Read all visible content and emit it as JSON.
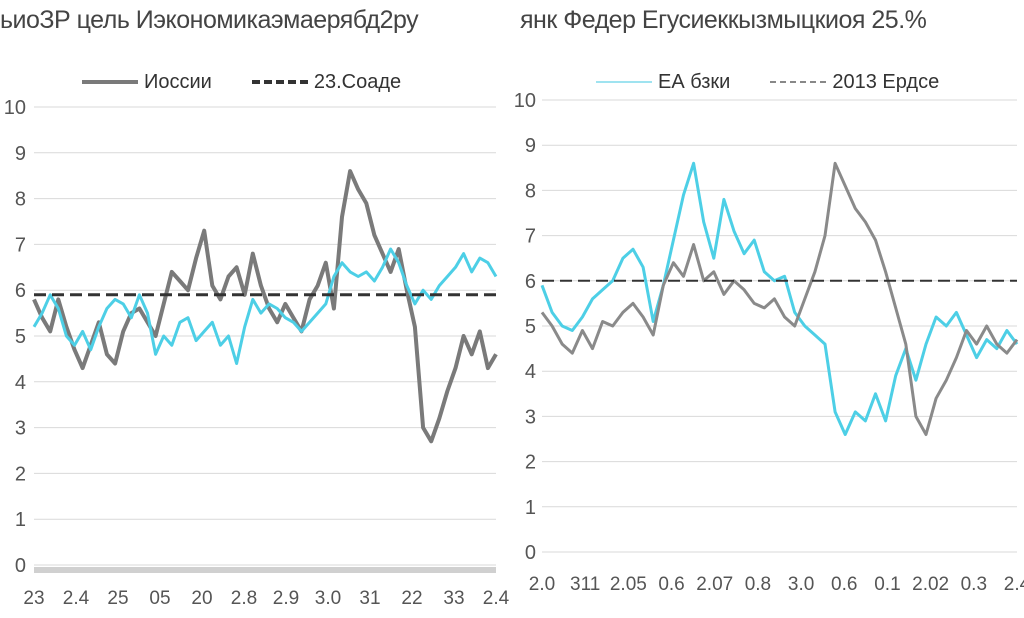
{
  "chart_data": [
    {
      "type": "line",
      "title": "ьиоЗР цель Иэкономикаэмаерябд2ру",
      "series": [
        {
          "name": "Иоссии",
          "color": "#7a7a7a",
          "style": "solid",
          "values": [
            5.8,
            5.4,
            5.1,
            5.8,
            5.2,
            4.7,
            4.3,
            4.8,
            5.3,
            4.6,
            4.4,
            5.1,
            5.5,
            5.6,
            5.3,
            5.0,
            5.7,
            6.4,
            6.2,
            6.0,
            6.7,
            7.3,
            6.1,
            5.8,
            6.3,
            6.5,
            5.9,
            6.8,
            6.1,
            5.6,
            5.3,
            5.7,
            5.4,
            5.1,
            5.8,
            6.1,
            6.6,
            5.6,
            7.6,
            8.6,
            8.2,
            7.9,
            7.2,
            6.8,
            6.4,
            6.9,
            6.0,
            5.2,
            3.0,
            2.7,
            3.2,
            3.8,
            4.3,
            5.0,
            4.6,
            5.1,
            4.3,
            4.6
          ]
        },
        {
          "name": "",
          "color": "#4dcfe6",
          "style": "solid",
          "values": [
            5.2,
            5.5,
            5.9,
            5.6,
            5.0,
            4.8,
            5.1,
            4.7,
            5.2,
            5.6,
            5.8,
            5.7,
            5.4,
            5.9,
            5.5,
            4.6,
            5.0,
            4.8,
            5.3,
            5.4,
            4.9,
            5.1,
            5.3,
            4.8,
            5.0,
            4.4,
            5.2,
            5.8,
            5.5,
            5.7,
            5.6,
            5.4,
            5.3,
            5.1,
            5.3,
            5.5,
            5.7,
            6.3,
            6.6,
            6.4,
            6.3,
            6.4,
            6.2,
            6.5,
            6.9,
            6.6,
            6.1,
            5.7,
            6.0,
            5.8,
            6.1,
            6.3,
            6.5,
            6.8,
            6.4,
            6.7,
            6.6,
            6.3
          ]
        },
        {
          "name": "23.Соаде",
          "color": "#333333",
          "style": "dashed",
          "values": [
            5.9,
            5.9
          ]
        }
      ],
      "ylim": [
        0,
        10
      ],
      "yticks": [
        "0",
        "1",
        "2",
        "3",
        "4",
        "5",
        "6",
        "7",
        "8",
        "9",
        "10"
      ],
      "xticks": [
        "23",
        "2.4",
        "25",
        "05",
        "20",
        "2.8",
        "2.9",
        "3.0",
        "31",
        "22",
        "33",
        "2.4"
      ],
      "grid": true,
      "legend_position": "top"
    },
    {
      "type": "line",
      "title": "янк Федер Егусиеккызмыцкиоя 25.%",
      "series": [
        {
          "name": "ЕА бзки",
          "color": "#4dcfe6",
          "style": "solid",
          "values": [
            5.9,
            5.3,
            5.0,
            4.9,
            5.2,
            5.6,
            5.8,
            6.0,
            6.5,
            6.7,
            6.3,
            5.1,
            5.9,
            6.9,
            7.9,
            8.6,
            7.3,
            6.5,
            7.8,
            7.1,
            6.6,
            6.9,
            6.2,
            6.0,
            6.1,
            5.3,
            5.0,
            4.8,
            4.6,
            3.1,
            2.6,
            3.1,
            2.9,
            3.5,
            2.9,
            3.9,
            4.5,
            3.8,
            4.6,
            5.2,
            5.0,
            5.3,
            4.8,
            4.3,
            4.7,
            4.5,
            4.9,
            4.6
          ]
        },
        {
          "name": "",
          "color": "#8a8a8a",
          "style": "solid",
          "values": [
            5.3,
            5.0,
            4.6,
            4.4,
            4.9,
            4.5,
            5.1,
            5.0,
            5.3,
            5.5,
            5.2,
            4.8,
            5.9,
            6.4,
            6.1,
            6.8,
            6.0,
            6.2,
            5.7,
            6.0,
            5.8,
            5.5,
            5.4,
            5.6,
            5.2,
            5.0,
            5.6,
            6.2,
            7.0,
            8.6,
            8.1,
            7.6,
            7.3,
            6.9,
            6.2,
            5.4,
            4.6,
            3.0,
            2.6,
            3.4,
            3.8,
            4.3,
            4.9,
            4.6,
            5.0,
            4.6,
            4.4,
            4.7
          ]
        },
        {
          "name": "2013 Ердсе",
          "color": "#333333",
          "style": "dashed",
          "values": [
            6.0,
            6.0
          ]
        }
      ],
      "ylim": [
        0,
        10
      ],
      "yticks": [
        "0",
        "1",
        "2",
        "3",
        "4",
        "5",
        "6",
        "7",
        "8",
        "9",
        "10"
      ],
      "xticks": [
        "2.0",
        "311",
        "2.05",
        "0.6",
        "2.07",
        "0.8",
        "3.0",
        "0.6",
        "0.1",
        "2.02",
        "0.3",
        "2.4"
      ],
      "grid": true,
      "legend_position": "top"
    }
  ]
}
